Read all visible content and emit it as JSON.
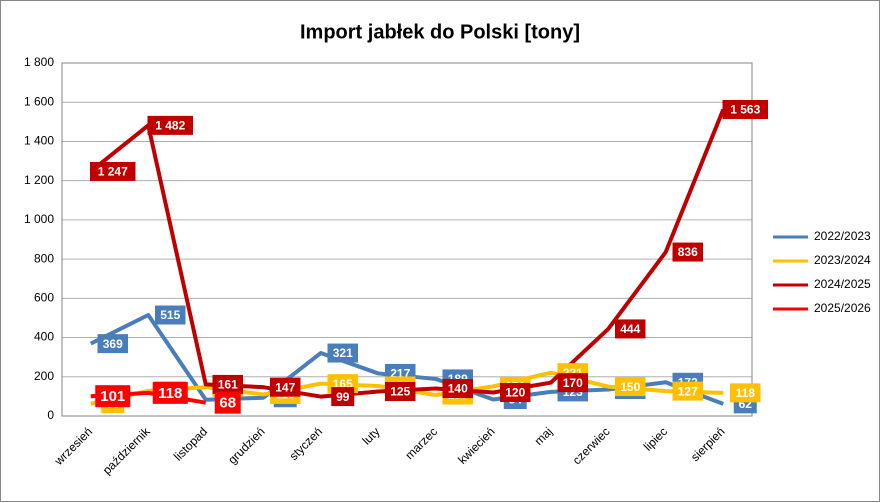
{
  "chart_data": {
    "type": "line",
    "title": "Import jabłek do Polski [tony]",
    "categories": [
      "wrzesień",
      "październik",
      "listopad",
      "grudzień",
      "styczeń",
      "luty",
      "marzec",
      "kwiecień",
      "maj",
      "czerwiec",
      "lipiec",
      "sierpień"
    ],
    "series": [
      {
        "name": "2022/2023",
        "color": "#4a7ebb",
        "values": [
          369,
          515,
          83,
          93,
          321,
          217,
          189,
          84,
          123,
          135,
          172,
          62
        ]
      },
      {
        "name": "2023/2024",
        "color": "#ffc000",
        "values": [
          63,
          128,
          147,
          110,
          165,
          153,
          107,
          151,
          221,
          150,
          127,
          118
        ]
      },
      {
        "name": "2024/2025",
        "color": "#c00000",
        "values": [
          1247,
          1482,
          161,
          147,
          99,
          125,
          140,
          120,
          170,
          444,
          836,
          1563
        ],
        "value_labels": [
          "1 247",
          "1 482",
          "161",
          "147",
          "99",
          "125",
          "140",
          "120",
          "170",
          "444",
          "836",
          "1 563"
        ]
      },
      {
        "name": "2025/2026",
        "color": "#ff0000",
        "values": [
          101,
          118,
          68,
          null,
          null,
          null,
          null,
          null,
          null,
          null,
          null,
          null
        ]
      }
    ],
    "ylim": [
      0,
      1800
    ],
    "yticks": [
      0,
      200,
      400,
      600,
      800,
      {
        "value": 1000,
        "label": "1 000"
      },
      {
        "value": 1200,
        "label": "1 200"
      },
      {
        "value": 1400,
        "label": "1 400"
      },
      {
        "value": 1600,
        "label": "1 600"
      },
      {
        "value": 1800,
        "label": "1 800"
      }
    ],
    "grid": true,
    "legend": "right"
  }
}
